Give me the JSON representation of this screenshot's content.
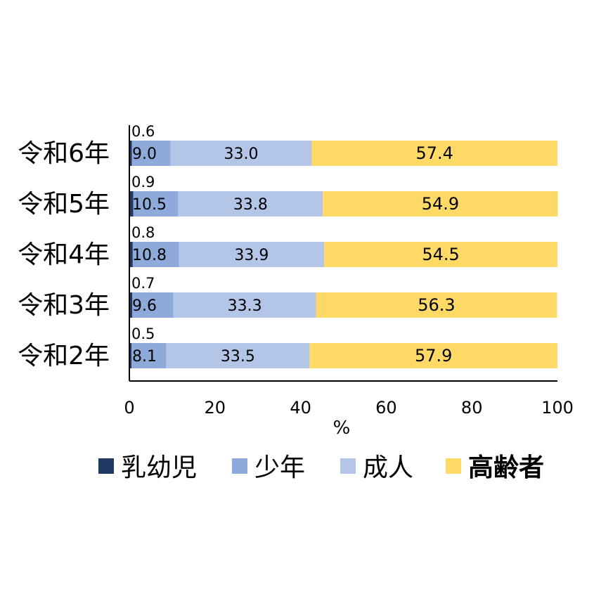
{
  "chart_data": {
    "type": "bar",
    "orientation": "horizontal",
    "stacked": true,
    "categories": [
      "令和6年",
      "令和5年",
      "令和4年",
      "令和3年",
      "令和2年"
    ],
    "series": [
      {
        "name": "乳幼児",
        "color": "#1f3864",
        "values": [
          0.6,
          0.9,
          0.8,
          0.7,
          0.5
        ],
        "labels": [
          "0.6",
          "0.9",
          "0.8",
          "0.7",
          "0.5"
        ]
      },
      {
        "name": "少年",
        "color": "#8eaadb",
        "values": [
          9.0,
          10.5,
          10.8,
          9.6,
          8.1
        ],
        "labels": [
          "9.0",
          "10.5",
          "10.8",
          "9.6",
          "8.1"
        ]
      },
      {
        "name": "成人",
        "color": "#b4c6e7",
        "values": [
          33.0,
          33.8,
          33.9,
          33.3,
          33.5
        ],
        "labels": [
          "33.0",
          "33.8",
          "33.9",
          "33.3",
          "33.5"
        ]
      },
      {
        "name": "高齢者",
        "color": "#ffd966",
        "values": [
          57.4,
          54.9,
          54.5,
          56.3,
          57.9
        ],
        "labels": [
          "57.4",
          "54.9",
          "54.5",
          "56.3",
          "57.9"
        ]
      }
    ],
    "xlabel": "%",
    "xlim": [
      0,
      100
    ],
    "xticks": [
      "0",
      "20",
      "40",
      "60",
      "80",
      "100"
    ],
    "grid": false,
    "legend_position": "bottom"
  }
}
